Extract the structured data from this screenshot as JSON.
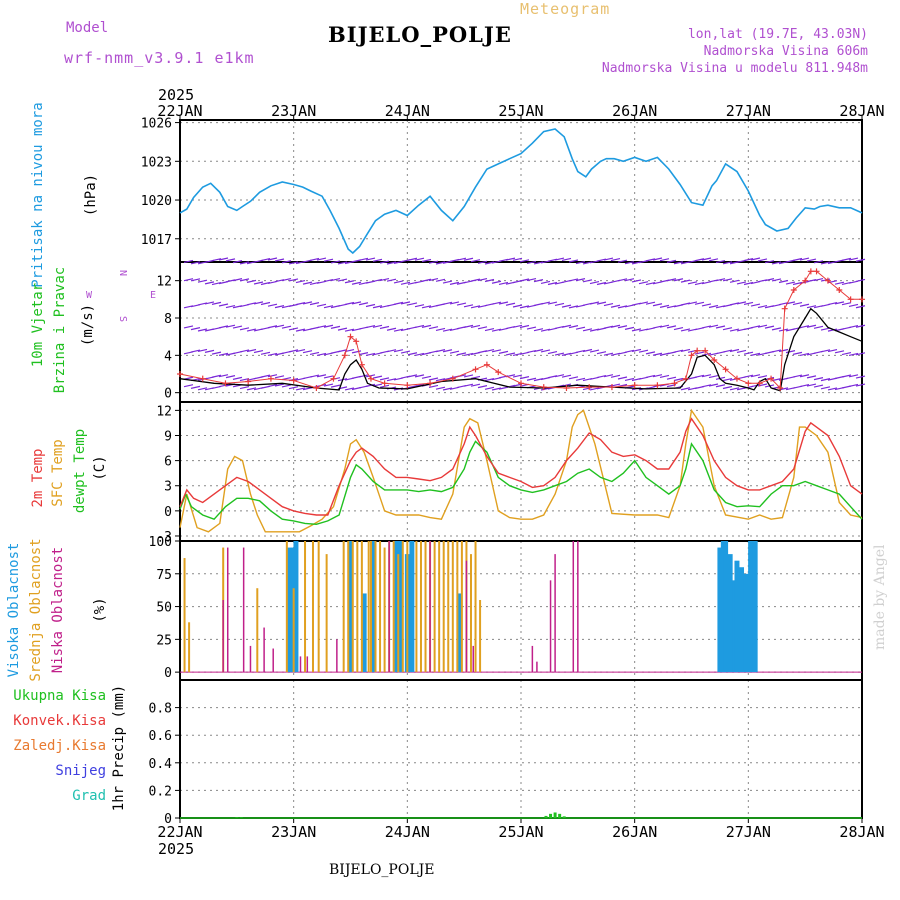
{
  "header": {
    "title": "BIJELO_POLJE",
    "subtitle": "Meteogram",
    "model_label": "Model",
    "model_name": "wrf-nmm_v3.9.1 e1km",
    "location_line1": "lon,lat (19.7E, 43.03N)",
    "location_line2": "Nadmorska Visina 606m",
    "location_line3": "Nadmorska Visina u modelu 811.948m"
  },
  "footer": {
    "label": "BIJELO_POLJE",
    "credit": "made by Angel"
  },
  "time_axis": {
    "year_top": "2025",
    "year_bottom": "2025",
    "day_labels": [
      "22JAN",
      "23JAN",
      "24JAN",
      "25JAN",
      "26JAN",
      "27JAN",
      "28JAN"
    ]
  },
  "colors": {
    "pressure": "#1e9be0",
    "temp2m": "#e83a3a",
    "sfc_temp": "#e0a020",
    "dewpoint": "#20c020",
    "high_cloud": "#1e9be0",
    "mid_cloud": "#e0a020",
    "low_cloud": "#c0208a",
    "wind_speed": "#000000",
    "gust": "#e83a3a",
    "barb": "#7a28d8",
    "precip_total": "#20c020",
    "convective": "#e83a3a",
    "freezing": "#e87a30",
    "snow": "#4040e0",
    "hail": "#20c0b0"
  },
  "chart_data": [
    {
      "type": "line",
      "title": "",
      "ylabel_left": "Pritisak na nivou mora",
      "ylabel_unit": "(hPa)",
      "ylim": [
        1015.2,
        1026.2
      ],
      "yticks": [
        1017,
        1020,
        1023,
        1026
      ],
      "xlim_days": [
        0,
        6
      ],
      "series": [
        {
          "key": "pressure",
          "x": [
            0,
            0.06,
            0.12,
            0.2,
            0.27,
            0.35,
            0.42,
            0.5,
            0.55,
            0.62,
            0.7,
            0.8,
            0.9,
            1.0,
            1.08,
            1.15,
            1.25,
            1.32,
            1.4,
            1.48,
            1.52,
            1.58,
            1.65,
            1.72,
            1.8,
            1.9,
            2.0,
            2.1,
            2.2,
            2.3,
            2.4,
            2.5,
            2.6,
            2.7,
            2.8,
            2.9,
            3.0,
            3.1,
            3.2,
            3.3,
            3.38,
            3.45,
            3.5,
            3.57,
            3.62,
            3.7,
            3.75,
            3.82,
            3.9,
            4.0,
            4.1,
            4.2,
            4.3,
            4.4,
            4.5,
            4.6,
            4.68,
            4.72,
            4.8,
            4.9,
            5.0,
            5.1,
            5.15,
            5.25,
            5.35,
            5.42,
            5.5,
            5.58,
            5.63,
            5.7,
            5.8,
            5.9,
            6.0
          ],
          "y": [
            1019,
            1019.3,
            1020.2,
            1021,
            1021.3,
            1020.6,
            1019.5,
            1019.2,
            1019.5,
            1019.9,
            1020.6,
            1021.1,
            1021.4,
            1021.2,
            1021,
            1020.7,
            1020.3,
            1019.2,
            1017.8,
            1016.2,
            1015.9,
            1016.4,
            1017.4,
            1018.4,
            1018.9,
            1019.2,
            1018.8,
            1019.6,
            1020.3,
            1019.2,
            1018.4,
            1019.5,
            1021,
            1022.4,
            1022.8,
            1023.2,
            1023.6,
            1024.4,
            1025.3,
            1025.5,
            1024.9,
            1023.2,
            1022.2,
            1021.8,
            1022.4,
            1023,
            1023.2,
            1023.2,
            1023,
            1023.3,
            1023,
            1023.3,
            1022.4,
            1021.2,
            1019.8,
            1019.6,
            1021.1,
            1021.5,
            1022.8,
            1022.2,
            1020.7,
            1018.8,
            1018.1,
            1017.6,
            1017.8,
            1018.6,
            1019.4,
            1019.3,
            1019.5,
            1019.6,
            1019.4,
            1019.4,
            1019
          ]
        }
      ]
    },
    {
      "type": "line",
      "title": "",
      "ylabel_left": "10m Vjetar",
      "ylabel_left2": "Brzina i Pravac",
      "ylabel_unit": "(m/s)",
      "compass": {
        "n": "N",
        "w": "W",
        "e": "E",
        "s": "S"
      },
      "ylim": [
        -1,
        14
      ],
      "yticks": [
        0,
        4,
        8,
        12
      ],
      "barb_levels": [
        0.5,
        1.5,
        4.2,
        6.8,
        9.3,
        11.8,
        14
      ],
      "series": [
        {
          "key": "wind_speed",
          "x": [
            0,
            0.3,
            0.6,
            0.9,
            1.2,
            1.4,
            1.45,
            1.5,
            1.55,
            1.6,
            1.65,
            1.75,
            2.0,
            2.3,
            2.6,
            2.9,
            3.2,
            3.5,
            3.8,
            4.1,
            4.4,
            4.5,
            4.55,
            4.62,
            4.7,
            4.75,
            4.8,
            4.9,
            5.0,
            5.05,
            5.1,
            5.15,
            5.2,
            5.28,
            5.32,
            5.4,
            5.5,
            5.55,
            5.6,
            5.7,
            5.8,
            5.9,
            6.0
          ],
          "y": [
            1.5,
            1,
            0.8,
            1,
            0.5,
            0.3,
            2,
            3,
            3.5,
            2.5,
            1,
            0.5,
            0.4,
            1.2,
            1.5,
            0.6,
            0.5,
            0.8,
            0.6,
            0.4,
            0.5,
            2,
            3.8,
            4,
            3,
            1.5,
            1,
            0.8,
            0.5,
            0.3,
            1.2,
            1.5,
            0.5,
            0.2,
            3,
            6,
            8,
            9,
            8.5,
            7,
            6.5,
            6,
            5.5
          ]
        },
        {
          "key": "gust",
          "x": [
            0,
            0.2,
            0.4,
            0.6,
            0.8,
            1.0,
            1.2,
            1.35,
            1.45,
            1.5,
            1.55,
            1.6,
            1.68,
            1.8,
            2.0,
            2.2,
            2.4,
            2.6,
            2.7,
            2.8,
            3.0,
            3.2,
            3.4,
            3.6,
            3.8,
            4.0,
            4.2,
            4.35,
            4.45,
            4.5,
            4.55,
            4.62,
            4.7,
            4.8,
            4.9,
            5.0,
            5.1,
            5.2,
            5.28,
            5.32,
            5.4,
            5.5,
            5.55,
            5.6,
            5.7,
            5.8,
            5.9,
            6.0
          ],
          "y": [
            2,
            1.5,
            1,
            1.2,
            1.5,
            1.3,
            0.5,
            1.5,
            4,
            6,
            5.5,
            3,
            1.5,
            1,
            0.8,
            1,
            1.5,
            2.5,
            3,
            2.2,
            1,
            0.6,
            0.5,
            0.6,
            0.6,
            0.8,
            0.8,
            1,
            1.5,
            4,
            4.5,
            4.5,
            3.5,
            2.5,
            1.5,
            1,
            1,
            1.5,
            0.5,
            9,
            11,
            12,
            13,
            13,
            12,
            11,
            10,
            10
          ]
        }
      ]
    },
    {
      "type": "line",
      "title": "",
      "ylabel_left": "2m Temp",
      "ylabel_left2": "SFC Temp",
      "ylabel_left3": "dewpt Temp",
      "ylabel_unit": "(C)",
      "ylim": [
        -3.6,
        13
      ],
      "yticks": [
        -3,
        0,
        3,
        6,
        9,
        12
      ],
      "series": [
        {
          "key": "temp2m",
          "x": [
            0,
            0.06,
            0.12,
            0.2,
            0.3,
            0.4,
            0.5,
            0.6,
            0.7,
            0.8,
            0.9,
            1.0,
            1.1,
            1.2,
            1.3,
            1.4,
            1.5,
            1.55,
            1.6,
            1.7,
            1.8,
            1.9,
            2.0,
            2.1,
            2.2,
            2.3,
            2.4,
            2.5,
            2.55,
            2.6,
            2.7,
            2.8,
            2.9,
            3.0,
            3.1,
            3.2,
            3.3,
            3.4,
            3.5,
            3.6,
            3.7,
            3.8,
            3.9,
            4.0,
            4.1,
            4.2,
            4.3,
            4.4,
            4.45,
            4.5,
            4.6,
            4.7,
            4.8,
            4.9,
            5.0,
            5.1,
            5.2,
            5.3,
            5.4,
            5.5,
            5.55,
            5.6,
            5.7,
            5.8,
            5.9,
            6.0
          ],
          "y": [
            0.5,
            2.5,
            1.5,
            1,
            2,
            3,
            4,
            3.5,
            2.5,
            1.5,
            0.5,
            0,
            -0.3,
            -0.5,
            -0.5,
            3,
            6,
            7,
            7.5,
            6.5,
            5,
            4,
            4,
            3.8,
            3.6,
            4,
            5,
            8,
            10,
            9,
            6.5,
            4.5,
            4,
            3.5,
            2.8,
            3,
            4,
            6,
            7.5,
            9.3,
            8.5,
            7,
            6.5,
            6.7,
            6,
            5,
            5,
            7,
            9.5,
            11,
            9,
            6,
            4,
            3,
            2.5,
            2.5,
            3,
            3.5,
            5,
            9.5,
            10.5,
            10,
            9,
            6.5,
            3,
            2
          ]
        },
        {
          "key": "sfc_temp",
          "x": [
            0,
            0.06,
            0.15,
            0.25,
            0.35,
            0.42,
            0.48,
            0.55,
            0.62,
            0.68,
            0.75,
            0.85,
            0.95,
            1.05,
            1.15,
            1.25,
            1.35,
            1.45,
            1.5,
            1.55,
            1.62,
            1.7,
            1.8,
            1.9,
            2.0,
            2.1,
            2.2,
            2.3,
            2.4,
            2.45,
            2.5,
            2.55,
            2.62,
            2.7,
            2.8,
            2.9,
            3.0,
            3.1,
            3.2,
            3.3,
            3.4,
            3.45,
            3.5,
            3.55,
            3.65,
            3.8,
            4.0,
            4.1,
            4.2,
            4.3,
            4.4,
            4.45,
            4.5,
            4.6,
            4.7,
            4.8,
            5.0,
            5.1,
            5.2,
            5.3,
            5.4,
            5.45,
            5.5,
            5.6,
            5.7,
            5.8,
            5.9,
            6.0
          ],
          "y": [
            -2,
            2,
            -2,
            -2.5,
            -1.5,
            5,
            6.5,
            6,
            2,
            -0.5,
            -2.5,
            -2.5,
            -2.5,
            -2.5,
            -1.8,
            -1,
            0.5,
            5,
            8,
            8.5,
            7,
            4,
            0,
            -0.5,
            -0.5,
            -0.5,
            -0.8,
            -1,
            2,
            6,
            10,
            11,
            10.5,
            6,
            0,
            -0.8,
            -1,
            -1,
            -0.5,
            2,
            6,
            10,
            11.5,
            12,
            8,
            -0.3,
            -0.5,
            -0.5,
            -0.5,
            -0.8,
            3,
            8,
            12,
            10,
            3,
            -0.5,
            -1,
            -0.5,
            -1,
            -0.8,
            4,
            10,
            10,
            9,
            7,
            1,
            -0.5,
            -0.8
          ]
        },
        {
          "key": "dewpoint",
          "x": [
            0,
            0.05,
            0.1,
            0.2,
            0.3,
            0.4,
            0.5,
            0.6,
            0.7,
            0.8,
            0.9,
            1.0,
            1.1,
            1.2,
            1.3,
            1.4,
            1.5,
            1.55,
            1.6,
            1.7,
            1.8,
            1.9,
            2.0,
            2.1,
            2.2,
            2.3,
            2.4,
            2.5,
            2.55,
            2.6,
            2.7,
            2.8,
            2.9,
            3.0,
            3.1,
            3.2,
            3.3,
            3.4,
            3.5,
            3.6,
            3.7,
            3.8,
            3.9,
            4.0,
            4.1,
            4.2,
            4.3,
            4.4,
            4.45,
            4.5,
            4.6,
            4.7,
            4.8,
            4.9,
            5.0,
            5.1,
            5.2,
            5.3,
            5.4,
            5.5,
            5.6,
            5.7,
            5.8,
            5.9,
            6.0
          ],
          "y": [
            0.2,
            2,
            0.5,
            -0.5,
            -1,
            0.5,
            1.5,
            1.5,
            1.2,
            0,
            -1,
            -1.2,
            -1.5,
            -1.6,
            -1.2,
            -0.5,
            4,
            5.5,
            5,
            3.5,
            2.5,
            2.5,
            2.5,
            2.3,
            2.5,
            2.3,
            2.8,
            5,
            7,
            8.3,
            7,
            4,
            3,
            2.5,
            2.2,
            2.5,
            3,
            3.5,
            4.5,
            5,
            4,
            3.5,
            4.5,
            6,
            4,
            3,
            2,
            3,
            5,
            8,
            6,
            2.5,
            1,
            0.5,
            0.6,
            0.5,
            2,
            3,
            3,
            3.5,
            3,
            2.5,
            2,
            0.5,
            -1
          ]
        }
      ]
    },
    {
      "type": "bar",
      "title": "",
      "ylabel_left": "Visoka Oblacnost",
      "ylabel_left2": "Srednja Oblacnost",
      "ylabel_left3": "Niska Oblacnost",
      "ylabel_unit": "(%)",
      "ylim": [
        0,
        100
      ],
      "yticks": [
        0,
        25,
        50,
        75,
        100
      ],
      "series": [
        {
          "key": "high_cloud",
          "x": [
            0.96,
            1.0,
            1.02,
            1.5,
            1.62,
            1.7,
            1.9,
            1.94,
            2.0,
            2.04,
            2.46,
            4.75,
            4.78,
            4.8,
            4.84,
            4.88,
            4.9,
            4.94,
            4.98,
            5.02,
            5.06
          ],
          "y": [
            95,
            95,
            100,
            100,
            60,
            100,
            100,
            100,
            90,
            100,
            60,
            95,
            100,
            100,
            90,
            70,
            85,
            80,
            75,
            100,
            100
          ]
        },
        {
          "key": "mid_cloud",
          "x": [
            0.04,
            0.08,
            0.38,
            0.68,
            0.94,
            1.0,
            1.1,
            1.17,
            1.22,
            1.29,
            1.44,
            1.48,
            1.52,
            1.56,
            1.6,
            1.66,
            1.68,
            1.72,
            1.76,
            1.8,
            1.84,
            1.88,
            1.92,
            1.96,
            2.0,
            2.08,
            2.12,
            2.16,
            2.2,
            2.24,
            2.28,
            2.32,
            2.36,
            2.4,
            2.44,
            2.48,
            2.52,
            2.56,
            2.6,
            2.64
          ],
          "y": [
            87,
            38,
            95,
            64,
            100,
            64,
            100,
            100,
            100,
            90,
            100,
            100,
            100,
            100,
            100,
            100,
            100,
            100,
            100,
            95,
            100,
            100,
            90,
            100,
            100,
            100,
            100,
            100,
            100,
            100,
            100,
            100,
            100,
            100,
            100,
            100,
            100,
            90,
            100,
            55
          ]
        },
        {
          "key": "low_cloud",
          "x": [
            0.38,
            0.42,
            0.56,
            0.62,
            0.74,
            0.82,
            1.06,
            1.12,
            1.38,
            1.84,
            2.2,
            2.52,
            2.58,
            3.1,
            3.14,
            3.26,
            3.3,
            3.46,
            3.5
          ],
          "y": [
            55,
            95,
            95,
            20,
            34,
            18,
            12,
            12,
            25,
            100,
            100,
            85,
            20,
            20,
            8,
            70,
            90,
            100,
            100
          ]
        }
      ]
    },
    {
      "type": "bar",
      "title": "",
      "ylabel_right": "1hr Precip",
      "ylabel_unit": "(mm)",
      "legend": [
        "Ukupna Kisa",
        "Konvek.Kisa",
        "Zaledj.Kisa",
        "Snijeg",
        "Grad"
      ],
      "ylim": [
        0,
        1.0
      ],
      "yticks": [
        0,
        0.2,
        0.4,
        0.6,
        0.8
      ],
      "series": [
        {
          "key": "precip_total",
          "x": [
            0.46,
            0.5,
            0.54,
            0.58,
            3.22,
            3.26,
            3.3,
            3.34,
            3.38
          ],
          "y": [
            0.003,
            0.006,
            0.006,
            0.003,
            0.015,
            0.03,
            0.04,
            0.03,
            0.012
          ]
        }
      ]
    }
  ]
}
